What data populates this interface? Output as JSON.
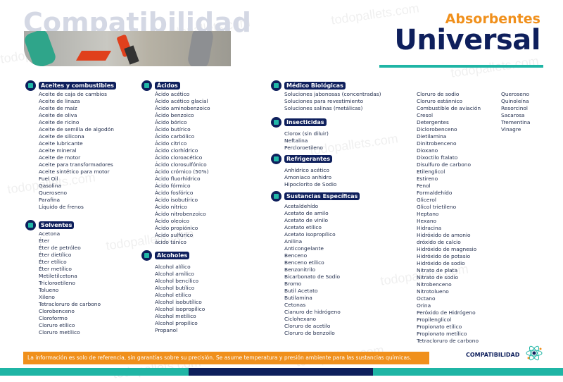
{
  "header": {
    "background_title": "Compatibilidad",
    "subtitle": "Absorbentes",
    "title": "Universal",
    "watermark": "todopallets.com"
  },
  "colors": {
    "navy": "#0e1f5c",
    "orange": "#f0901c",
    "teal": "#1fb5a5"
  },
  "sections": [
    {
      "id": "aceites",
      "title": "Aceites y combustibles",
      "icon": "container-icon",
      "items": [
        "Aceite de caja de cambios",
        "Aceite de linaza",
        "Aceite de maíz",
        "Aceite de oliva",
        "Aceite de ricino",
        "Aceite de semilla de algodón",
        "Aceite de silicona",
        "Aceite lubricante",
        "Aceite mineral",
        "Aceite de motor",
        "Aceite para transformadores",
        "Aceite sintético para motor",
        "Fuel Oil",
        "Gasolina",
        "Queroseno",
        "Parafina",
        "Líquido de frenos"
      ]
    },
    {
      "id": "solventes",
      "title": "Solventes",
      "icon": "container-icon",
      "items": [
        "Acetona",
        "Éter",
        "Éter de petróleo",
        "Éter dietílico",
        "Éter etílico",
        "Éter metílico",
        "Metiletilcetona",
        "Tricloroetileno",
        "Tolueno",
        "Xileno",
        "Tetracloruro de carbono",
        "Clorobenceno",
        "Cloroformo",
        "Cloruro etílico",
        "Cloruro metílico"
      ]
    },
    {
      "id": "acidos",
      "title": "Ácidos",
      "icon": "container-icon",
      "items": [
        "Ácido acético",
        "Ácido acético glacial",
        "Ácido aminobenzoico",
        "Ácido benzoico",
        "Ácido bórico",
        "Ácido butírico",
        "Ácido carbólico",
        "Ácido cítrico",
        "Ácido clorhídrico",
        "Ácido cloroacético",
        "Ácido clorosulfónico",
        "Ácido crómico (50%)",
        "Ácido fluorhídrico",
        "Ácido fórmico",
        "Ácido fosfórico",
        "Ácido isobutírico",
        "Ácido nítrico",
        "Ácido nitrobenzoico",
        "Ácido oleoico",
        "Ácido propiónico",
        "Ácido sulfúrico",
        "ácido tánico"
      ]
    },
    {
      "id": "alcoholes",
      "title": "Alcoholes",
      "icon": "container-icon",
      "items": [
        "Alcohol alílico",
        "Alcohol amílico",
        "Alcohol bencílico",
        "Alcohol butílico",
        "Alcohol etílico",
        "Alcohol isobutílico",
        "Alcohol isopropílico",
        "Alcohol metílico",
        "Alcohol propílico",
        "Propanol"
      ]
    },
    {
      "id": "medico",
      "title": "Médico Biológicas",
      "icon": "container-icon",
      "items": [
        "Soluciones jabonosas (concentradas)",
        "Soluciones para revestimiento",
        "Soluciones salinas (metálicas)"
      ]
    },
    {
      "id": "insecticidas",
      "title": "Insecticidas",
      "icon": "container-icon",
      "items": [
        "Clorox (sin diluir)",
        "Neftalina",
        "Percloroetileno"
      ]
    },
    {
      "id": "refrigerantes",
      "title": "Refrigerantes",
      "icon": "container-icon",
      "items": [
        "Anhídrico acético",
        "Amoniaco anhidro",
        "Hipoclorito de Sodio"
      ]
    },
    {
      "id": "sustancias",
      "title": "Sustancias Específicas",
      "icon": "container-icon",
      "items": [
        "Acetaldehído",
        "Acetato de amilo",
        "Acetato de vinilo",
        "Acetato etílico",
        "Acetato isopropílico",
        "Anilina",
        "Anticongelante",
        "Benceno",
        "Benceno etílico",
        "Benzonitrilo",
        "Bicarbonato de Sodio",
        "Bromo",
        "Butil Acetato",
        "Butilamina",
        "Cetonas",
        "Cianuro de hidrógeno",
        "Ciclohexano",
        "Cloruro de acetilo",
        "Cloruro de benzoilo"
      ]
    },
    {
      "id": "sustancias2",
      "title": "",
      "items": [
        "Cloruro de sodio",
        "Cloruro estánnico",
        "Combustible de aviación",
        "Cresol",
        "Detergentes",
        "Diclorobenceno",
        "Dietilamina",
        "Dinitrobenceno",
        "Dioxano",
        "Dixoctilo ftalato",
        "Disulfuro de carbono",
        "Etilenglicol",
        "Estireno",
        "Fenol",
        "Formaldehído",
        "Glicerol",
        "Glicol trietileno",
        "Heptano",
        "Hexano",
        "Hidracina",
        "Hidróxido de amonio",
        "dróxido de calcio",
        "Hidróxido de magnesio",
        "Hidróxido de potasio",
        "Hidróxido de sodio",
        "Nitrato de plata",
        "Nitrato de sodio",
        "Nitrobenceno",
        "Nitrotolueno",
        "Octano",
        "Orina",
        "Peróxido de Hidrógeno",
        "Propilenglicol",
        "Propionato etílico",
        "Propionato metílico",
        "Tetracloruro de carbono"
      ]
    },
    {
      "id": "sustancias3",
      "title": "",
      "items": [
        "Queroseno",
        "Quinoleína",
        "Resorcinol",
        "Sacarosa",
        "Trementina",
        "Vinagre"
      ]
    }
  ],
  "footer": {
    "note": "La información es solo de referencia, sin garantías sobre su precisión. Se asume temperatura y presión ambiente para las sustancias químicas.",
    "brand": "COMPATIBILIDAD",
    "brand_icon": "atom-icon"
  }
}
